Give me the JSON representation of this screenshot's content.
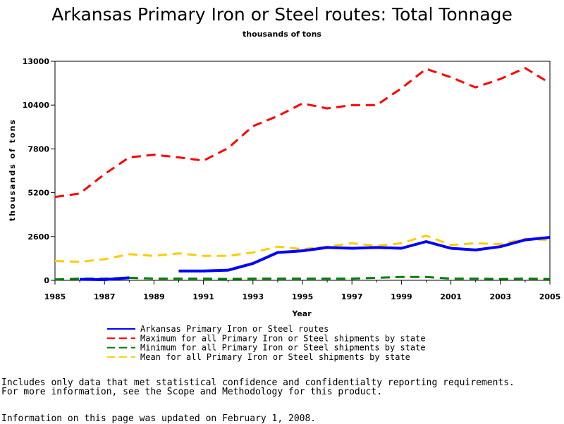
{
  "chart_data": {
    "type": "line",
    "title": "Arkansas Primary Iron or Steel routes: Total Tonnage",
    "subtitle": "thousands of tons",
    "xlabel": "Year",
    "ylabel": "thousands of tons",
    "xlim": [
      1985,
      2005
    ],
    "ylim": [
      0,
      13000
    ],
    "x_ticks": [
      1985,
      1987,
      1989,
      1991,
      1993,
      1995,
      1997,
      1999,
      2001,
      2003,
      2005
    ],
    "y_ticks": [
      0,
      2600,
      5200,
      7800,
      10400,
      13000
    ],
    "legend_position": "bottom",
    "series": [
      {
        "name": "Arkansas Primary Iron or Steel routes",
        "color": "#0000ff",
        "style": "solid",
        "segments": [
          [
            [
              1986,
              60
            ],
            [
              1987,
              40
            ],
            [
              1988,
              150
            ]
          ],
          [
            [
              1990,
              550
            ],
            [
              1991,
              550
            ],
            [
              1992,
              600
            ],
            [
              1993,
              1000
            ],
            [
              1994,
              1650
            ],
            [
              1995,
              1750
            ],
            [
              1996,
              1950
            ],
            [
              1997,
              1900
            ],
            [
              1998,
              1950
            ],
            [
              1999,
              1900
            ],
            [
              2000,
              2300
            ],
            [
              2001,
              1900
            ],
            [
              2002,
              1800
            ],
            [
              2003,
              2000
            ],
            [
              2004,
              2400
            ],
            [
              2005,
              2550
            ]
          ]
        ]
      },
      {
        "name": "Maximum for all Primary Iron or Steel shipments by state",
        "color": "#ff0000",
        "style": "dashed",
        "points": [
          [
            1985,
            4950
          ],
          [
            1986,
            5150
          ],
          [
            1987,
            6300
          ],
          [
            1988,
            7300
          ],
          [
            1989,
            7450
          ],
          [
            1990,
            7300
          ],
          [
            1991,
            7100
          ],
          [
            1992,
            7850
          ],
          [
            1993,
            9150
          ],
          [
            1994,
            9750
          ],
          [
            1995,
            10500
          ],
          [
            1996,
            10200
          ],
          [
            1997,
            10400
          ],
          [
            1998,
            10400
          ],
          [
            1999,
            11400
          ],
          [
            2000,
            12550
          ],
          [
            2001,
            12050
          ],
          [
            2002,
            11450
          ],
          [
            2003,
            11950
          ],
          [
            2004,
            12600
          ],
          [
            2005,
            11700
          ]
        ]
      },
      {
        "name": "Minimum for all Primary Iron or Steel shipments by state",
        "color": "#008000",
        "style": "dashed",
        "points": [
          [
            1985,
            50
          ],
          [
            1986,
            100
          ],
          [
            1987,
            100
          ],
          [
            1988,
            150
          ],
          [
            1989,
            100
          ],
          [
            1990,
            100
          ],
          [
            1991,
            100
          ],
          [
            1992,
            80
          ],
          [
            1993,
            100
          ],
          [
            1994,
            100
          ],
          [
            1995,
            100
          ],
          [
            1996,
            100
          ],
          [
            1997,
            100
          ],
          [
            1998,
            150
          ],
          [
            1999,
            200
          ],
          [
            2000,
            200
          ],
          [
            2001,
            100
          ],
          [
            2002,
            100
          ],
          [
            2003,
            80
          ],
          [
            2004,
            100
          ],
          [
            2005,
            80
          ]
        ]
      },
      {
        "name": "Mean for all Primary Iron or Steel shipments by state",
        "color": "#ffcc00",
        "style": "dashed",
        "points": [
          [
            1985,
            1150
          ],
          [
            1986,
            1100
          ],
          [
            1987,
            1250
          ],
          [
            1988,
            1550
          ],
          [
            1989,
            1450
          ],
          [
            1990,
            1600
          ],
          [
            1991,
            1450
          ],
          [
            1992,
            1450
          ],
          [
            1993,
            1650
          ],
          [
            1994,
            2000
          ],
          [
            1995,
            1850
          ],
          [
            1996,
            2000
          ],
          [
            1997,
            2200
          ],
          [
            1998,
            2050
          ],
          [
            1999,
            2200
          ],
          [
            2000,
            2650
          ],
          [
            2001,
            2100
          ],
          [
            2002,
            2200
          ],
          [
            2003,
            2150
          ],
          [
            2004,
            2450
          ],
          [
            2005,
            2400
          ]
        ]
      }
    ]
  },
  "notes": {
    "line1": "Includes only data that met statistical confidence and confidentialty reporting requirements.",
    "line2": "For more information, see the Scope and Methodology for this product.",
    "updated": "Information on this page was updated on February 1, 2008."
  }
}
